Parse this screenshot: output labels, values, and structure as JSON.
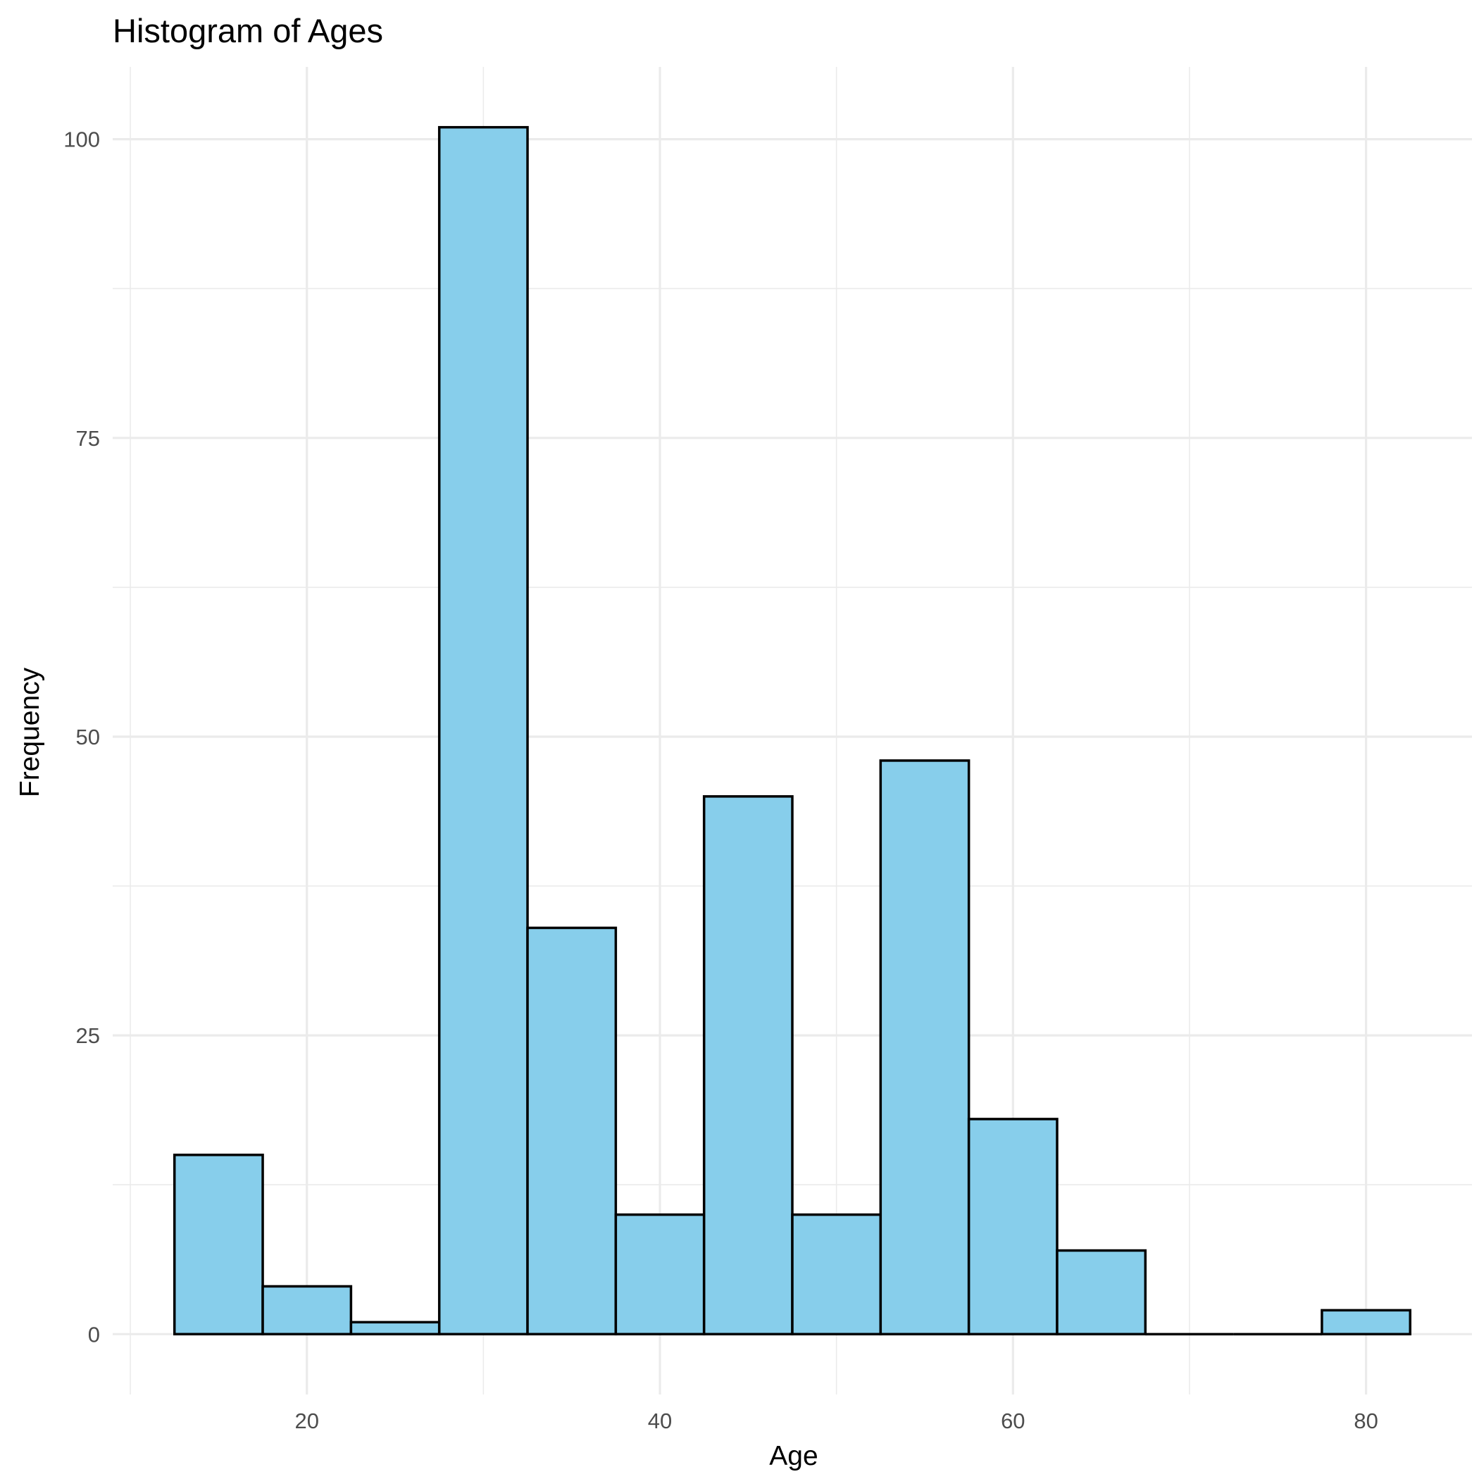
{
  "chart_data": {
    "type": "bar",
    "title": "Histogram of Ages",
    "xlabel": "Age",
    "ylabel": "Frequency",
    "bin_width": 5,
    "bins": [
      {
        "from": 12.5,
        "to": 17.5,
        "count": 15
      },
      {
        "from": 17.5,
        "to": 22.5,
        "count": 4
      },
      {
        "from": 22.5,
        "to": 27.5,
        "count": 1
      },
      {
        "from": 27.5,
        "to": 32.5,
        "count": 101
      },
      {
        "from": 32.5,
        "to": 37.5,
        "count": 34
      },
      {
        "from": 37.5,
        "to": 42.5,
        "count": 10
      },
      {
        "from": 42.5,
        "to": 47.5,
        "count": 45
      },
      {
        "from": 47.5,
        "to": 52.5,
        "count": 10
      },
      {
        "from": 52.5,
        "to": 57.5,
        "count": 48
      },
      {
        "from": 57.5,
        "to": 62.5,
        "count": 18
      },
      {
        "from": 62.5,
        "to": 67.5,
        "count": 7
      },
      {
        "from": 67.5,
        "to": 72.5,
        "count": 0
      },
      {
        "from": 72.5,
        "to": 77.5,
        "count": 0
      },
      {
        "from": 77.5,
        "to": 82.5,
        "count": 2
      }
    ],
    "x_ticks": [
      20,
      40,
      60,
      80
    ],
    "x_tick_labels": [
      "20",
      "40",
      "60",
      "80"
    ],
    "y_ticks": [
      0,
      25,
      50,
      75,
      100
    ],
    "y_tick_labels": [
      "0",
      "25",
      "50",
      "75",
      "100"
    ],
    "xlim": [
      9,
      86
    ],
    "ylim": [
      -5.05,
      106.05
    ],
    "grid": true,
    "legend": false,
    "colors": {
      "bar_fill": "#87ceeb",
      "bar_outline": "#000000",
      "grid": "#ebebeb",
      "background": "#ffffff"
    }
  }
}
